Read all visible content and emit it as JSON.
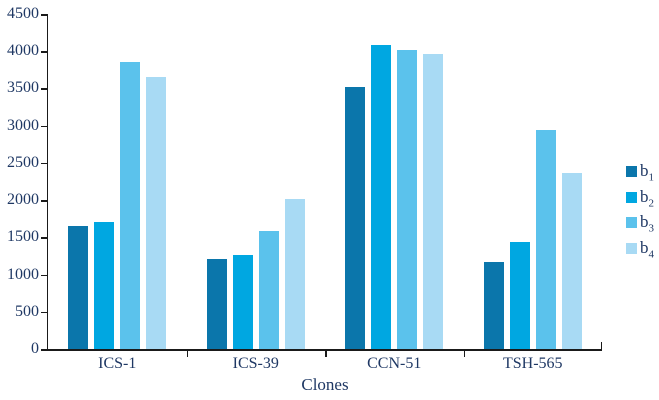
{
  "chart_data": {
    "type": "bar",
    "title": "",
    "xlabel": "Clones",
    "ylabel": "",
    "categories": [
      "ICS-1",
      "ICS-39",
      "CCN-51",
      "TSH-565"
    ],
    "series": [
      {
        "name": "b",
        "sub": "1",
        "color": "#0b76ab",
        "values": [
          1650,
          1210,
          3520,
          1170
        ]
      },
      {
        "name": "b",
        "sub": "2",
        "color": "#00a7e1",
        "values": [
          1700,
          1260,
          4080,
          1440
        ]
      },
      {
        "name": "b",
        "sub": "3",
        "color": "#5bc2ec",
        "values": [
          3850,
          1590,
          4020,
          2940
        ]
      },
      {
        "name": "b",
        "sub": "4",
        "color": "#a8daf4",
        "values": [
          3650,
          2020,
          3960,
          2370
        ]
      }
    ],
    "ylim": [
      0,
      4500
    ],
    "ytick_step": 500,
    "grid": false,
    "legend_position": "right",
    "colors": {
      "axis": "#1a1a1a",
      "text": "#1f3864",
      "background": "#ffffff"
    }
  }
}
